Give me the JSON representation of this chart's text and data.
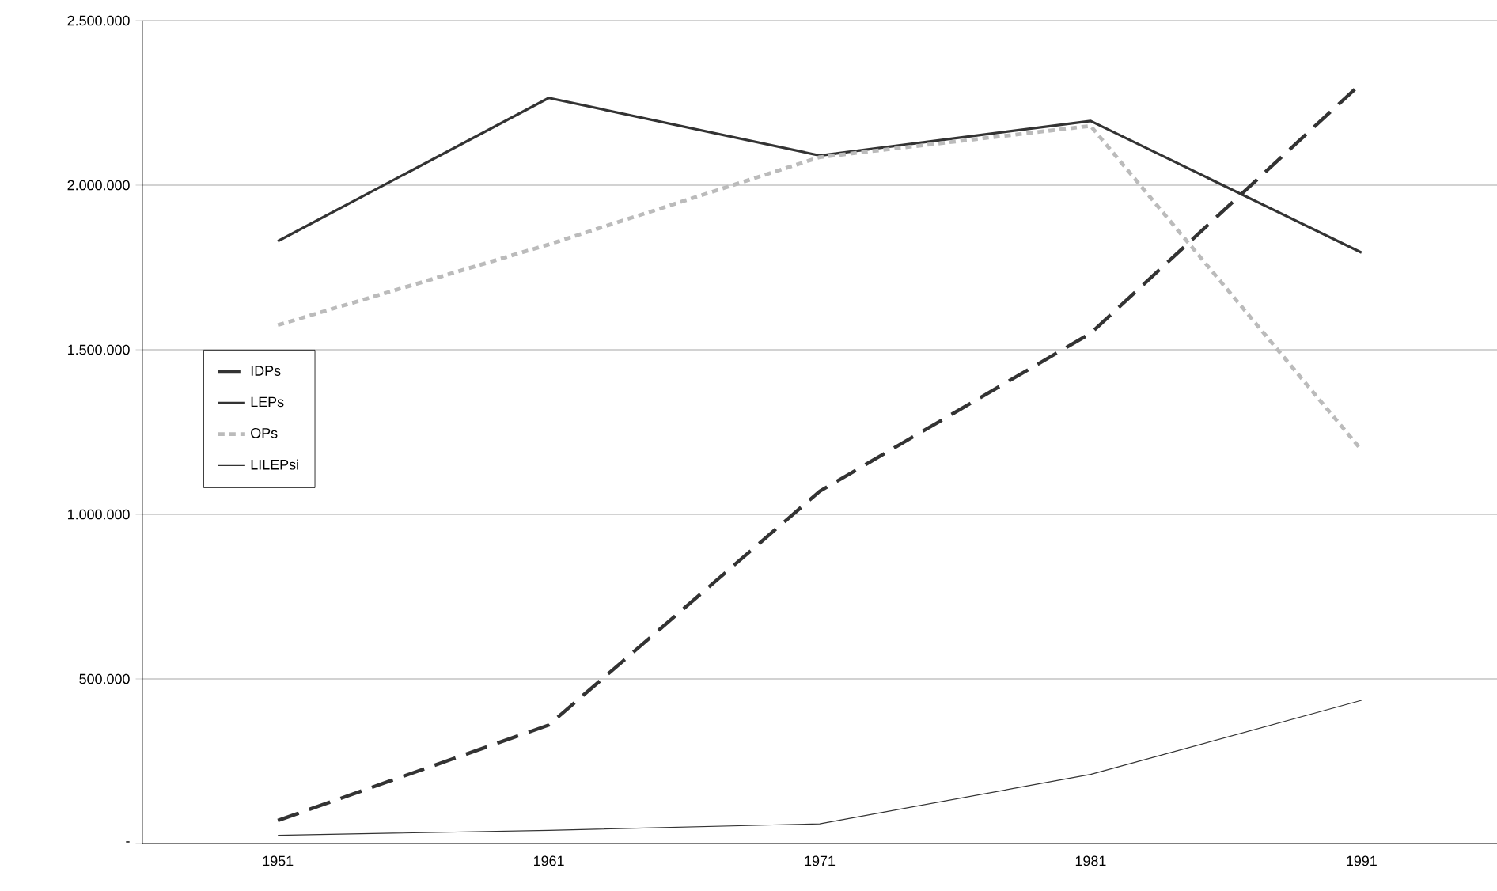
{
  "chart_data": {
    "type": "line",
    "categories": [
      "1951",
      "1961",
      "1971",
      "1981",
      "1991"
    ],
    "series": [
      {
        "name": "IDPs",
        "color": "#333333",
        "line_style": "dashed",
        "values": [
          70000,
          360000,
          1070000,
          1550000,
          2310000
        ]
      },
      {
        "name": "LEPs",
        "color": "#333333",
        "line_style": "solid",
        "values": [
          1830000,
          2265000,
          2090000,
          2195000,
          1795000
        ]
      },
      {
        "name": "OPs",
        "color": "#bbbbbb",
        "line_style": "dotted",
        "values": [
          1575000,
          1820000,
          2085000,
          2180000,
          1195000
        ]
      },
      {
        "name": "LILEPsi",
        "color": "#333333",
        "line_style": "solid",
        "values": [
          25000,
          40000,
          60000,
          210000,
          435000
        ]
      }
    ],
    "ylim": [
      0,
      2500000
    ],
    "yticks": [
      {
        "value": 0,
        "label": "-"
      },
      {
        "value": 500000,
        "label": "500.000"
      },
      {
        "value": 1000000,
        "label": "1.000.000"
      },
      {
        "value": 1500000,
        "label": "1.500.000"
      },
      {
        "value": 2000000,
        "label": "2.000.000"
      },
      {
        "value": 2500000,
        "label": "2.500.000"
      }
    ],
    "grid": "y",
    "legend": "left",
    "marker": "none"
  }
}
